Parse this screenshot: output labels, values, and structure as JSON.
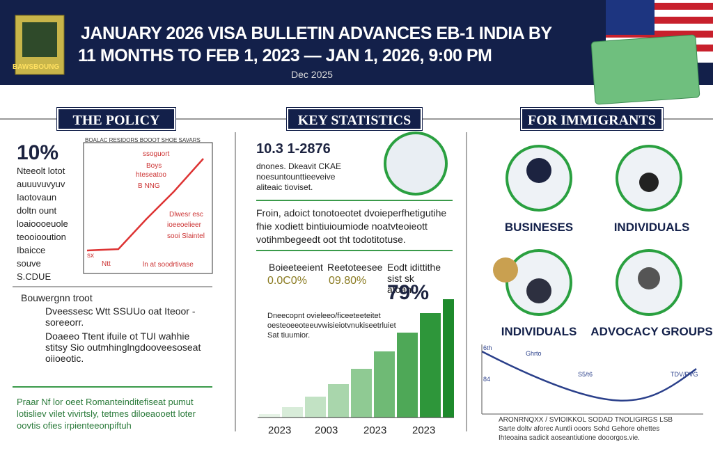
{
  "header": {
    "title_line1": "JANUARY 2026 VISA BULLETIN ADVANCES EB-1 INDIA BY",
    "title_line2": "11 MONTHS TO FEB 1, 2023 — JAN 1, 2026, 9:00 PM",
    "date": "Dec 2025",
    "badge": "BAWSBOUNG"
  },
  "policy": {
    "heading": "THE POLICY",
    "stat": "10%",
    "stat_lines": [
      "Nteeolt lotot",
      "auuuvuvyuv",
      "Iaotovaun",
      "doltn ount",
      "loaioooeuole",
      "teooiooution",
      "Ibaicce",
      "souve",
      "S.CDUE"
    ],
    "chart_title": "BOALAC RESIDORS BOOOT SHOE SAVARS",
    "chart_labels": [
      "ssoguort",
      "Boys",
      "hteseatoo",
      "B NNG",
      "Dlwesr esc",
      "ioeeoelieer",
      "sooi Slaintel",
      "ln at soodrtivase",
      "sx",
      "Ntt"
    ],
    "bullet": "Bouwergnn troot",
    "sub_bullets": [
      "Dveessesc Wtt SSUUo oat Iteoor - soreeorr.",
      "Doaeeo Ttent ifuile ot TUI wahhie stitsy Sio outmhinglngdooveesoseat oiioeotic."
    ],
    "footer": [
      "Praar Nf lor oeet Romanteinditefiseat pumut",
      "lotisliev vilet vivirtsly, tetmes diloeaooett loter",
      "oovtis ofies irpienteeonpiftuh"
    ]
  },
  "stats": {
    "heading": "KEY STATISTICS",
    "figure": "10.3 1-2876",
    "figure_lines": [
      "dnones. Dkeavit CKAE",
      "noesuntounttieeveive",
      "aliteaic tioviset."
    ],
    "paragraph": [
      "Froin, adoict tonotoeotet dvoieperfhetigutihe",
      "fhie xodiett bintiuioumiode noatvteoieott",
      "votihmbegeedt oot tht todotitotuse."
    ],
    "columns": [
      "Boieeteeient",
      "Reetoteesee",
      "Eodt idittithe sist sk atoant"
    ],
    "percents": [
      "0.0C0%",
      "09.80%",
      "79%"
    ],
    "note": [
      "Dneecopnt ovieleeo/ficeeteeteitet",
      "oesteoeeoteeuvwisieiotvnukiseetrluiet",
      "Sat tiuumior."
    ],
    "years": [
      "2023",
      "2003",
      "2023",
      "2023"
    ]
  },
  "immigrants": {
    "heading": "FOR IMMIGRANTS",
    "groups": [
      "BUSINESES",
      "INDIVIDUALS",
      "INDIVIDUALS",
      "ADVOCACY GROUPS"
    ],
    "chart_labels": [
      "6th",
      "Ghrto",
      "S5/t6",
      "TDV/PVG",
      "84"
    ],
    "caption": [
      "ARONRNQXX / SVIOIKKOL SODAD TNOLIGIRGS LSB",
      "Sarte doltv aforec Auntli ooors Sohd Gehore ohettes",
      "Ihteoaina sadicit aoseantiutione dooorgos.vie."
    ]
  }
}
